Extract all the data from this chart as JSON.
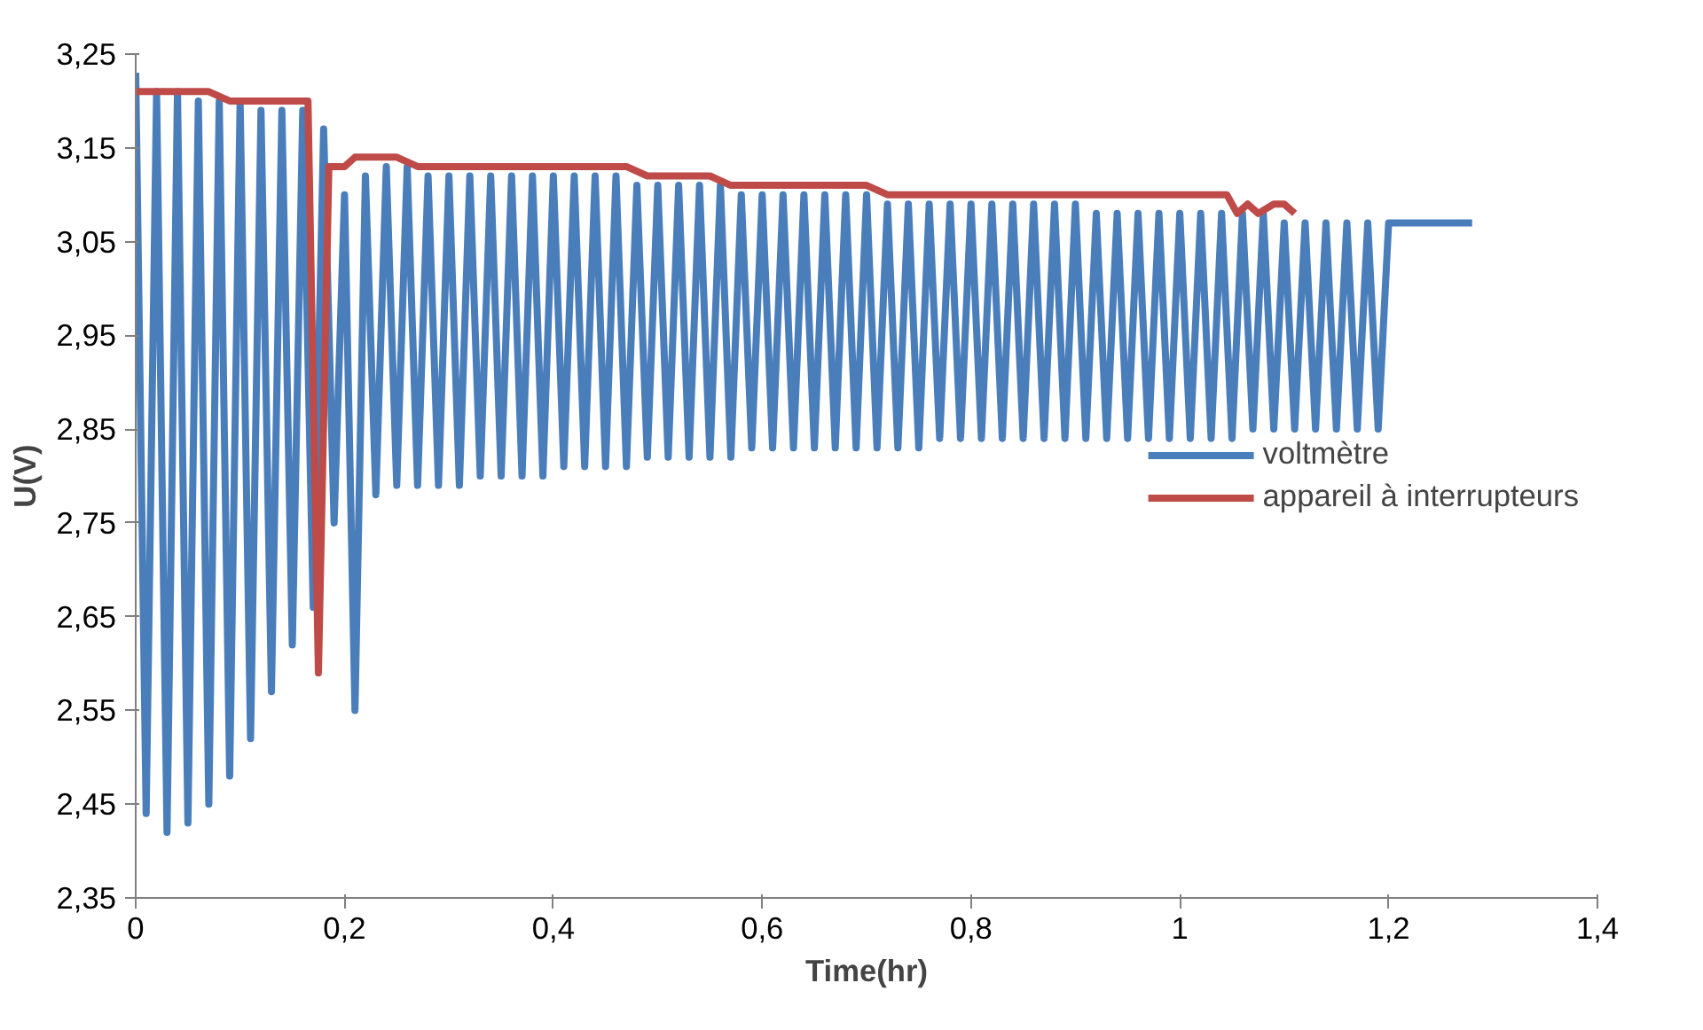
{
  "chart_data": {
    "type": "line",
    "xlabel": "Time(hr)",
    "ylabel": "U(V)",
    "xlim": [
      0,
      1.4
    ],
    "ylim": [
      2.35,
      3.25
    ],
    "xticks": [
      0,
      {
        "value": 0.2,
        "label": "0,2"
      },
      {
        "value": 0.4,
        "label": "0,4"
      },
      {
        "value": 0.6,
        "label": "0,6"
      },
      {
        "value": 0.8,
        "label": "0,8"
      },
      1,
      {
        "value": 1.2,
        "label": "1,2"
      },
      {
        "value": 1.4,
        "label": "1,4"
      }
    ],
    "yticks": [
      {
        "value": 2.35,
        "label": "2,35"
      },
      {
        "value": 2.45,
        "label": "2,45"
      },
      {
        "value": 2.55,
        "label": "2,55"
      },
      {
        "value": 2.65,
        "label": "2,65"
      },
      {
        "value": 2.75,
        "label": "2,75"
      },
      {
        "value": 2.85,
        "label": "2,85"
      },
      {
        "value": 2.95,
        "label": "2,95"
      },
      {
        "value": 3.05,
        "label": "3,05"
      },
      {
        "value": 3.15,
        "label": "3,15"
      },
      {
        "value": 3.25,
        "label": "3,25"
      }
    ],
    "grid": false,
    "legend": "right",
    "line_style": "solid",
    "series": [
      {
        "name": "voltmètre",
        "color": "#4a7ebb",
        "x": [
          0,
          0.01,
          0.02,
          0.03,
          0.04,
          0.05,
          0.06,
          0.07,
          0.08,
          0.09,
          0.1,
          0.11,
          0.12,
          0.13,
          0.14,
          0.15,
          0.16,
          0.17,
          0.18,
          0.19,
          0.2,
          0.21,
          0.22,
          0.23,
          0.24,
          0.25,
          0.26,
          0.27,
          0.28,
          0.29,
          0.3,
          0.31,
          0.32,
          0.33,
          0.34,
          0.35,
          0.36,
          0.37,
          0.38,
          0.39,
          0.4,
          0.41,
          0.42,
          0.43,
          0.44,
          0.45,
          0.46,
          0.47,
          0.48,
          0.49,
          0.5,
          0.51,
          0.52,
          0.53,
          0.54,
          0.55,
          0.56,
          0.57,
          0.58,
          0.59,
          0.6,
          0.61,
          0.62,
          0.63,
          0.64,
          0.65,
          0.66,
          0.67,
          0.68,
          0.69,
          0.7,
          0.71,
          0.72,
          0.73,
          0.74,
          0.75,
          0.76,
          0.77,
          0.78,
          0.79,
          0.8,
          0.81,
          0.82,
          0.83,
          0.84,
          0.85,
          0.86,
          0.87,
          0.88,
          0.89,
          0.9,
          0.91,
          0.92,
          0.93,
          0.94,
          0.95,
          0.96,
          0.97,
          0.98,
          0.99,
          1.0,
          1.01,
          1.02,
          1.03,
          1.04,
          1.05,
          1.06,
          1.07,
          1.08,
          1.09,
          1.1,
          1.11,
          1.12,
          1.13,
          1.14,
          1.15,
          1.16,
          1.17,
          1.18,
          1.19,
          1.2,
          1.28
        ],
        "values": [
          3.23,
          2.44,
          3.21,
          2.42,
          3.21,
          2.43,
          3.2,
          2.45,
          3.2,
          2.48,
          3.2,
          2.52,
          3.19,
          2.57,
          3.19,
          2.62,
          3.19,
          2.66,
          3.17,
          2.75,
          3.1,
          2.55,
          3.12,
          2.78,
          3.13,
          2.79,
          3.13,
          2.79,
          3.12,
          2.79,
          3.12,
          2.79,
          3.12,
          2.8,
          3.12,
          2.8,
          3.12,
          2.8,
          3.12,
          2.8,
          3.12,
          2.81,
          3.12,
          2.81,
          3.12,
          2.81,
          3.12,
          2.81,
          3.11,
          2.82,
          3.11,
          2.82,
          3.11,
          2.82,
          3.11,
          2.82,
          3.11,
          2.82,
          3.1,
          2.83,
          3.1,
          2.83,
          3.1,
          2.83,
          3.1,
          2.83,
          3.1,
          2.83,
          3.1,
          2.83,
          3.1,
          2.83,
          3.09,
          2.83,
          3.09,
          2.83,
          3.09,
          2.84,
          3.09,
          2.84,
          3.09,
          2.84,
          3.09,
          2.84,
          3.09,
          2.84,
          3.09,
          2.84,
          3.09,
          2.84,
          3.09,
          2.84,
          3.08,
          2.84,
          3.08,
          2.84,
          3.08,
          2.84,
          3.08,
          2.84,
          3.08,
          2.84,
          3.08,
          2.84,
          3.08,
          2.84,
          3.08,
          2.85,
          3.08,
          2.85,
          3.07,
          2.85,
          3.07,
          2.85,
          3.07,
          2.85,
          3.07,
          2.85,
          3.07,
          2.85,
          3.07,
          3.07
        ]
      },
      {
        "name": "appareil à interrupteurs",
        "color": "#be4b48",
        "x": [
          0,
          0.07,
          0.09,
          0.165,
          0.175,
          0.185,
          0.2,
          0.21,
          0.25,
          0.27,
          0.47,
          0.49,
          0.55,
          0.57,
          0.7,
          0.72,
          1.045,
          1.055,
          1.065,
          1.075,
          1.09,
          1.1,
          1.11
        ],
        "values": [
          3.21,
          3.21,
          3.2,
          3.2,
          2.59,
          3.13,
          3.13,
          3.14,
          3.14,
          3.13,
          3.13,
          3.12,
          3.12,
          3.11,
          3.11,
          3.1,
          3.1,
          3.08,
          3.09,
          3.08,
          3.09,
          3.09,
          3.08
        ]
      }
    ]
  }
}
